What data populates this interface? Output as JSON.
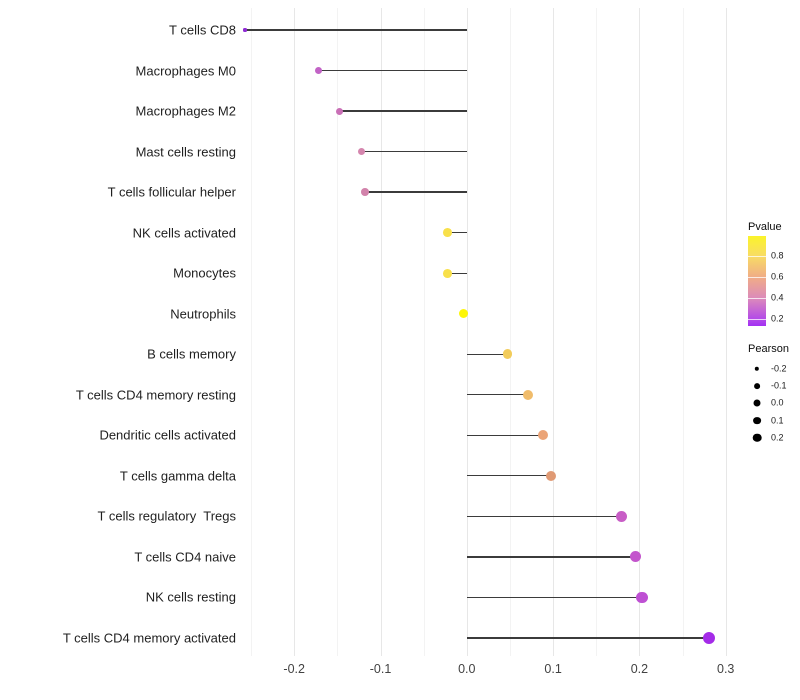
{
  "chart_data": {
    "type": "scatter",
    "subtype": "lollipop",
    "title": "",
    "xlabel": "",
    "ylabel": "",
    "grid": "major-and-minor-vertical",
    "legend_position": "right",
    "x_ticks": [
      -0.2,
      -0.1,
      0.0,
      0.1,
      0.2,
      0.3
    ],
    "x_tick_labels": [
      "-0.2",
      "-0.1",
      "0.0",
      "0.1",
      "0.2",
      "0.3"
    ],
    "xlim": [
      -0.26,
      0.325
    ],
    "points": [
      {
        "label": "T cells CD8",
        "pearson": -0.257,
        "color": "#8F2BD4",
        "radius": 1.6
      },
      {
        "label": "Macrophages M0",
        "pearson": -0.172,
        "color": "#C263C6",
        "radius": 3.5
      },
      {
        "label": "Macrophages M2",
        "pearson": -0.148,
        "color": "#C96FB6",
        "radius": 3.6
      },
      {
        "label": "Mast cells resting",
        "pearson": -0.122,
        "color": "#D586AE",
        "radius": 3.8
      },
      {
        "label": "T cells follicular helper",
        "pearson": -0.118,
        "color": "#D283AB",
        "radius": 3.85
      },
      {
        "label": "NK cells activated",
        "pearson": -0.022,
        "color": "#F8E04A",
        "radius": 4.4
      },
      {
        "label": "Monocytes",
        "pearson": -0.022,
        "color": "#F8E04A",
        "radius": 4.4
      },
      {
        "label": "Neutrophils",
        "pearson": -0.004,
        "color": "#FDF607",
        "radius": 4.55
      },
      {
        "label": "B cells memory",
        "pearson": 0.047,
        "color": "#F2CC5B",
        "radius": 4.8
      },
      {
        "label": "T cells CD4 memory resting",
        "pearson": 0.071,
        "color": "#F0BC6B",
        "radius": 4.95
      },
      {
        "label": "Dendritic cells activated",
        "pearson": 0.088,
        "color": "#EBA477",
        "radius": 5.05
      },
      {
        "label": "T cells gamma delta",
        "pearson": 0.098,
        "color": "#E09A74",
        "radius": 5.1
      },
      {
        "label": "T cells regulatory  Tregs",
        "pearson": 0.179,
        "color": "#C85DC6",
        "radius": 5.5
      },
      {
        "label": "T cells CD4 naive",
        "pearson": 0.196,
        "color": "#C355CC",
        "radius": 5.6
      },
      {
        "label": "NK cells resting",
        "pearson": 0.203,
        "color": "#BE50D3",
        "radius": 5.65
      },
      {
        "label": "T cells CD4 memory activated",
        "pearson": 0.281,
        "color": "#A42BE8",
        "radius": 6.1
      }
    ],
    "legend": {
      "pvalue": {
        "title": "Pvalue",
        "gradient_stops": [
          {
            "color": "#FBF42A",
            "pos": 0
          },
          {
            "color": "#F8DC64",
            "pos": 22
          },
          {
            "color": "#F0AC87",
            "pos": 46
          },
          {
            "color": "#DC8BBA",
            "pos": 69
          },
          {
            "color": "#B44BE8",
            "pos": 92
          },
          {
            "color": "#A331F2",
            "pos": 100
          }
        ],
        "ticks": [
          {
            "label": "0.8",
            "pos": 22.2
          },
          {
            "label": "0.6",
            "pos": 45.6
          },
          {
            "label": "0.4",
            "pos": 68.9
          },
          {
            "label": "0.2",
            "pos": 92.2
          }
        ]
      },
      "pearson": {
        "title": "Pearson",
        "items": [
          {
            "label": "-0.2",
            "radius": 2.2
          },
          {
            "label": "-0.1",
            "radius": 2.9
          },
          {
            "label": "0.0",
            "radius": 3.5
          },
          {
            "label": "0.1",
            "radius": 3.9
          },
          {
            "label": "0.2",
            "radius": 4.3
          }
        ]
      }
    }
  }
}
